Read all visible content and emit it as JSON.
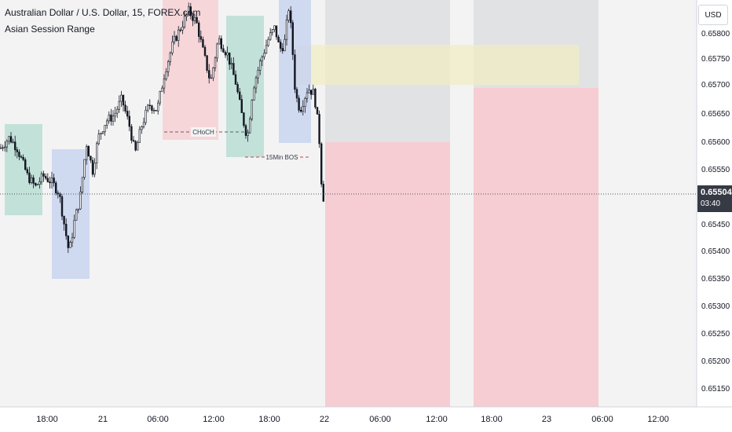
{
  "header": {
    "title": "Australian Dollar / U.S. Dollar, 15, FOREX.com",
    "indicator": "Asian Session Range"
  },
  "currency_button": "USD",
  "price_axis": {
    "labels": [
      "0.65800",
      "0.65750",
      "0.65700",
      "0.65650",
      "0.65600",
      "0.65550",
      "0.65450",
      "0.65400",
      "0.65350",
      "0.65300",
      "0.65250",
      "0.65200",
      "0.65150"
    ]
  },
  "current_price": {
    "value": "0.65504",
    "countdown": "03:40"
  },
  "time_axis": {
    "labels": [
      "18:00",
      "21",
      "06:00",
      "12:00",
      "18:00",
      "22",
      "06:00",
      "12:00",
      "18:00",
      "23",
      "06:00",
      "12:00"
    ]
  },
  "annotations": {
    "choch": "CHoCH",
    "bos": "15Min BOS"
  },
  "colors": {
    "asia_box": "#b9ddd4",
    "london_box": "#f6d0d3",
    "ny_box": "#c8d4ef",
    "bearish_zone": "#f5cdd2",
    "neutral_zone": "#e0e2e4",
    "range_box": "#f2ecc4",
    "candle": "#131722",
    "axis_text": "#131722"
  },
  "chart_data": {
    "type": "candlestick",
    "symbol": "AUDUSD",
    "timeframe": "15",
    "last_price": 0.65504,
    "ylim": [
      0.6512,
      0.6582
    ],
    "close_path": [
      [
        0,
        0.6556
      ],
      [
        12,
        0.6558
      ],
      [
        22,
        0.6556
      ],
      [
        35,
        0.6551
      ],
      [
        45,
        0.6549
      ],
      [
        55,
        0.6551
      ],
      [
        65,
        0.655
      ],
      [
        75,
        0.6548
      ],
      [
        82,
        0.6542
      ],
      [
        88,
        0.6537
      ],
      [
        95,
        0.6543
      ],
      [
        102,
        0.6547
      ],
      [
        110,
        0.6557
      ],
      [
        118,
        0.6552
      ],
      [
        125,
        0.6558
      ],
      [
        135,
        0.6561
      ],
      [
        145,
        0.6562
      ],
      [
        155,
        0.6565
      ],
      [
        165,
        0.656
      ],
      [
        172,
        0.6555
      ],
      [
        180,
        0.656
      ],
      [
        190,
        0.6564
      ],
      [
        200,
        0.6563
      ],
      [
        210,
        0.657
      ],
      [
        220,
        0.6575
      ],
      [
        230,
        0.6578
      ],
      [
        240,
        0.6581
      ],
      [
        250,
        0.6579
      ],
      [
        258,
        0.6574
      ],
      [
        268,
        0.6568
      ],
      [
        278,
        0.6576
      ],
      [
        290,
        0.6573
      ],
      [
        300,
        0.6568
      ],
      [
        308,
        0.6562
      ],
      [
        315,
        0.6558
      ],
      [
        322,
        0.6567
      ],
      [
        332,
        0.6572
      ],
      [
        342,
        0.6576
      ],
      [
        350,
        0.6578
      ],
      [
        356,
        0.6574
      ],
      [
        362,
        0.6575
      ],
      [
        368,
        0.6582
      ],
      [
        372,
        0.6575
      ],
      [
        376,
        0.6566
      ],
      [
        382,
        0.6563
      ],
      [
        392,
        0.6567
      ],
      [
        400,
        0.6566
      ],
      [
        406,
        0.6559
      ],
      [
        410,
        0.6548
      ],
      [
        414,
        0.6546
      ]
    ]
  }
}
